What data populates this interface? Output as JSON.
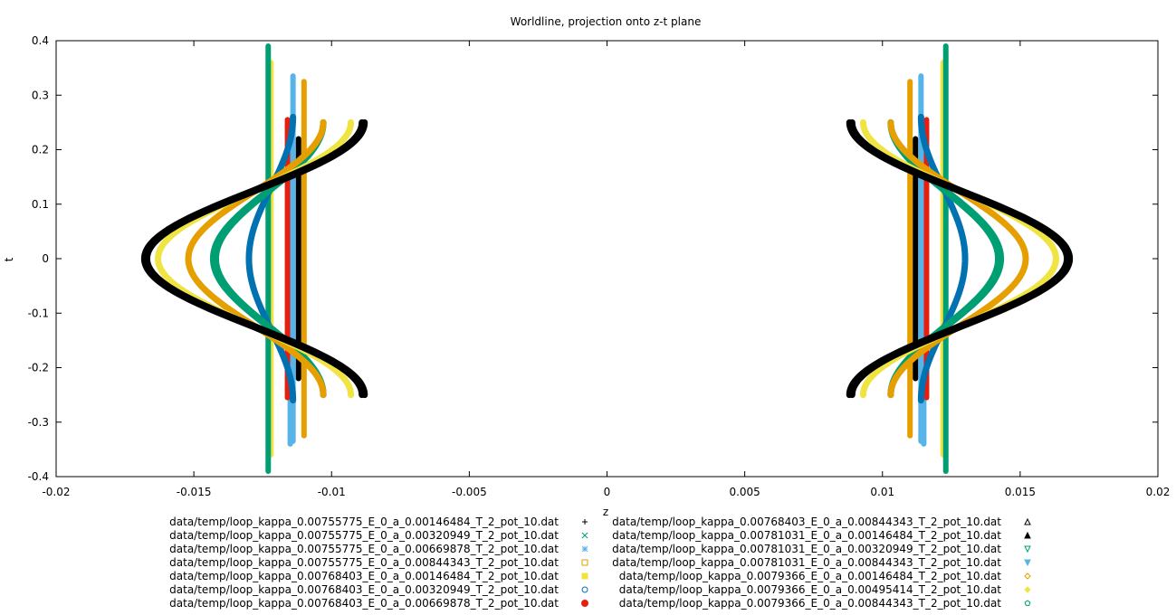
{
  "chart_data": {
    "type": "line",
    "title": "Worldline, projection onto z-t plane",
    "xlabel": "z",
    "ylabel": "t",
    "xlim": [
      -0.02,
      0.02
    ],
    "ylim": [
      -0.4,
      0.4
    ],
    "xticks": [
      -0.02,
      -0.015,
      -0.01,
      -0.005,
      0,
      0.005,
      0.01,
      0.015,
      0.02
    ],
    "xtick_labels": [
      "-0.02",
      "-0.015",
      "-0.01",
      "-0.005",
      "0",
      "0.005",
      "0.01",
      "0.015",
      "0.02"
    ],
    "yticks": [
      -0.4,
      -0.3,
      -0.2,
      -0.1,
      0,
      0.1,
      0.2,
      0.3,
      0.4
    ],
    "ytick_labels": [
      "-0.4",
      "-0.3",
      "-0.2",
      "-0.1",
      "0",
      "0.1",
      "0.2",
      "0.3",
      "0.4"
    ],
    "grid": false,
    "legend_position": "bottom",
    "series": [
      {
        "name": "data/temp/loop_kappa_0.00755775_E_0_a_0.00146484_T_2_pot_10.dat",
        "color": "#000000",
        "marker": "plus",
        "shape": "sine",
        "z_center": 0.0122,
        "z_extreme": 0.0168,
        "z_end": 0.0089,
        "t_half": 0.25
      },
      {
        "name": "data/temp/loop_kappa_0.00755775_E_0_a_0.00320949_T_2_pot_10.dat",
        "color": "#009e73",
        "marker": "cross",
        "shape": "sine",
        "z_center": 0.0122,
        "z_extreme": 0.0143,
        "z_end": 0.0103,
        "t_half": 0.25
      },
      {
        "name": "data/temp/loop_kappa_0.00755775_E_0_a_0.00669878_T_2_pot_10.dat",
        "color": "#56b4e9",
        "marker": "star",
        "shape": "straight",
        "z_center": 0.0114,
        "t_top": 0.335,
        "t_bottom": -0.335
      },
      {
        "name": "data/temp/loop_kappa_0.00755775_E_0_a_0.00844343_T_2_pot_10.dat",
        "color": "#e69f00",
        "marker": "box",
        "shape": "straight",
        "z_center": 0.011,
        "t_top": 0.325,
        "t_bottom": -0.325
      },
      {
        "name": "data/temp/loop_kappa_0.00768403_E_0_a_0.00146484_T_2_pot_10.dat",
        "color": "#f0e442",
        "marker": "filled-box",
        "shape": "sine",
        "z_center": 0.0122,
        "z_extreme": 0.0163,
        "z_end": 0.0093,
        "t_half": 0.25
      },
      {
        "name": "data/temp/loop_kappa_0.00768403_E_0_a_0.00320949_T_2_pot_10.dat",
        "color": "#0072b2",
        "marker": "circle",
        "shape": "sine",
        "z_center": 0.0122,
        "z_extreme": 0.013,
        "z_end": 0.0114,
        "t_half": 0.26
      },
      {
        "name": "data/temp/loop_kappa_0.00768403_E_0_a_0.00669878_T_2_pot_10.dat",
        "color": "#e51e10",
        "marker": "filled-circle",
        "shape": "straight",
        "z_center": 0.0116,
        "t_top": 0.255,
        "t_bottom": -0.255
      },
      {
        "name": "data/temp/loop_kappa_0.00768403_E_0_a_0.00844343_T_2_pot_10.dat",
        "color": "#000000",
        "marker": "triangle",
        "shape": "straight",
        "z_center": 0.0112,
        "t_top": 0.22,
        "t_bottom": -0.22
      },
      {
        "name": "data/temp/loop_kappa_0.00781031_E_0_a_0.00146484_T_2_pot_10.dat",
        "color": "#000000",
        "marker": "filled-triangle",
        "shape": "sine",
        "z_center": 0.0122,
        "z_extreme": 0.0167,
        "z_end": 0.0088,
        "t_half": 0.25
      },
      {
        "name": "data/temp/loop_kappa_0.00781031_E_0_a_0.00320949_T_2_pot_10.dat",
        "color": "#009e73",
        "marker": "triangle-down",
        "shape": "sine",
        "z_center": 0.0122,
        "z_extreme": 0.0142,
        "z_end": 0.0103,
        "t_half": 0.25
      },
      {
        "name": "data/temp/loop_kappa_0.00781031_E_0_a_0.00844343_T_2_pot_10.dat",
        "color": "#56b4e9",
        "marker": "filled-triangle-down",
        "shape": "straight",
        "z_center": 0.0115,
        "t_top": 0.22,
        "t_bottom": -0.34
      },
      {
        "name": "data/temp/loop_kappa_0.0079366_E_0_a_0.00146484_T_2_pot_10.dat",
        "color": "#e69f00",
        "marker": "diamond",
        "shape": "sine",
        "z_center": 0.0122,
        "z_extreme": 0.0152,
        "z_end": 0.0103,
        "t_half": 0.25
      },
      {
        "name": "data/temp/loop_kappa_0.0079366_E_0_a_0.00495414_T_2_pot_10.dat",
        "color": "#f0e442",
        "marker": "filled-diamond",
        "shape": "straight",
        "z_center": 0.0122,
        "t_top": 0.36,
        "t_bottom": -0.36
      },
      {
        "name": "data/temp/loop_kappa_0.0079366_E_0_a_0.00844343_T_2_pot_10.dat",
        "color": "#009e73",
        "marker": "pentagon",
        "shape": "straight",
        "z_center": 0.0123,
        "t_top": 0.39,
        "t_bottom": -0.39
      }
    ]
  }
}
